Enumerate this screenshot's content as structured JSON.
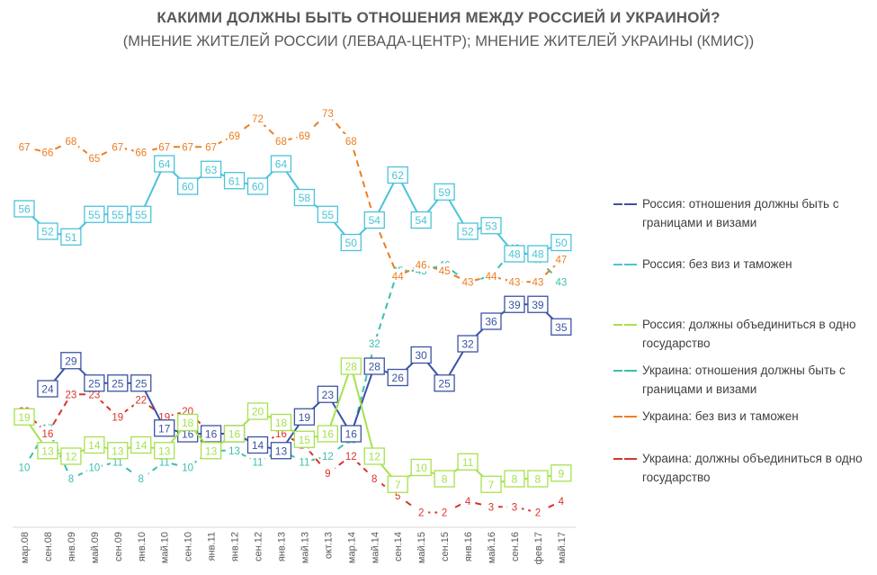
{
  "title": "КАКИМИ ДОЛЖНЫ БЫТЬ ОТНОШЕНИЯ МЕЖДУ РОССИЕЙ И УКРАИНОЙ?",
  "subtitle": "(МНЕНИЕ ЖИТЕЛЕЙ РОССИИ (ЛЕВАДА-ЦЕНТР); МНЕНИЕ ЖИТЕЛЕЙ УКРАИНЫ (КМИС))",
  "chart_data": {
    "type": "line",
    "title": "КАКИМИ ДОЛЖНЫ БЫТЬ ОТНОШЕНИЯ МЕЖДУ РОССИЕЙ И УКРАИНОЙ?",
    "subtitle": "(МНЕНИЕ ЖИТЕЛЕЙ РОССИИ (ЛЕВАДА-ЦЕНТР); МНЕНИЕ ЖИТЕЛЕЙ УКРАИНЫ (КМИС))",
    "categories": [
      "мар.08",
      "сен.08",
      "янв.09",
      "май.09",
      "сен.09",
      "янв.10",
      "май.10",
      "сен.10",
      "янв.11",
      "янв.12",
      "сен.12",
      "янв.13",
      "май.13",
      "окт.13",
      "мар.14",
      "май.14",
      "сен.14",
      "май.15",
      "сен.15",
      "янв.16",
      "май.16",
      "сен.16",
      "фев.17",
      "май.17"
    ],
    "legend_position": "right",
    "grid": false,
    "series": [
      {
        "name": "Россия: отношения должны быть с границами и визами",
        "color": "#3b53a4",
        "points": [
          [
            1,
            24
          ],
          [
            2,
            29
          ],
          [
            3,
            25
          ],
          [
            4,
            25
          ],
          [
            5,
            25
          ],
          [
            6,
            17
          ],
          [
            7,
            16
          ],
          [
            8,
            16
          ],
          [
            9,
            16
          ],
          [
            10,
            14
          ],
          [
            11,
            13
          ],
          [
            12,
            19
          ],
          [
            13,
            23
          ],
          [
            14,
            16
          ],
          [
            15,
            28
          ],
          [
            16,
            26
          ],
          [
            17,
            30
          ],
          [
            18,
            25
          ],
          [
            19,
            32
          ],
          [
            20,
            36
          ],
          [
            21,
            39
          ],
          [
            22,
            39
          ],
          [
            23,
            35
          ]
        ]
      },
      {
        "name": "Россия: без виз и таможен",
        "color": "#4bc3da",
        "points": [
          [
            0,
            56
          ],
          [
            1,
            52
          ],
          [
            2,
            51
          ],
          [
            3,
            55
          ],
          [
            4,
            55
          ],
          [
            5,
            55
          ],
          [
            6,
            64
          ],
          [
            7,
            60
          ],
          [
            8,
            63
          ],
          [
            9,
            61
          ],
          [
            10,
            60
          ],
          [
            11,
            64
          ],
          [
            12,
            58
          ],
          [
            13,
            55
          ],
          [
            14,
            50
          ],
          [
            15,
            54
          ],
          [
            16,
            62
          ],
          [
            17,
            54
          ],
          [
            18,
            59
          ],
          [
            19,
            52
          ],
          [
            20,
            53
          ],
          [
            21,
            48
          ],
          [
            22,
            48
          ],
          [
            23,
            50
          ]
        ]
      },
      {
        "name": "Россия: должны объединиться в одно государство",
        "color": "#a6e24f",
        "points": [
          [
            0,
            19
          ],
          [
            1,
            13
          ],
          [
            2,
            12
          ],
          [
            3,
            14
          ],
          [
            4,
            13
          ],
          [
            5,
            14
          ],
          [
            6,
            13
          ],
          [
            7,
            18
          ],
          [
            8,
            13
          ],
          [
            9,
            16
          ],
          [
            10,
            20
          ],
          [
            11,
            18
          ],
          [
            12,
            15
          ],
          [
            13,
            16
          ],
          [
            14,
            28
          ],
          [
            15,
            12
          ],
          [
            16,
            7
          ],
          [
            17,
            10
          ],
          [
            18,
            8
          ],
          [
            19,
            11
          ],
          [
            20,
            7
          ],
          [
            21,
            8
          ],
          [
            22,
            8
          ],
          [
            23,
            9
          ]
        ]
      },
      {
        "name": "Украина: отношения должны быть с границами и визами",
        "color": "#3bbfb0",
        "points": [
          [
            0,
            10
          ],
          [
            1,
            17
          ],
          [
            2,
            8
          ],
          [
            3,
            10
          ],
          [
            4,
            11
          ],
          [
            5,
            8
          ],
          [
            6,
            11
          ],
          [
            7,
            10
          ],
          [
            8,
            13
          ],
          [
            9,
            13
          ],
          [
            10,
            11
          ],
          [
            11,
            13
          ],
          [
            12,
            11
          ],
          [
            13,
            12
          ],
          [
            14,
            15
          ],
          [
            15,
            32
          ],
          [
            16,
            45
          ],
          [
            17,
            45
          ],
          [
            18,
            46
          ],
          [
            19,
            43
          ],
          [
            20,
            44
          ],
          [
            21,
            49
          ],
          [
            22,
            47
          ],
          [
            23,
            43
          ]
        ]
      },
      {
        "name": "Украина: без виз и таможен",
        "color": "#ed7d21",
        "points": [
          [
            0,
            67
          ],
          [
            1,
            66
          ],
          [
            2,
            68
          ],
          [
            3,
            65
          ],
          [
            4,
            67
          ],
          [
            5,
            66
          ],
          [
            6,
            67
          ],
          [
            7,
            67
          ],
          [
            8,
            67
          ],
          [
            9,
            69
          ],
          [
            10,
            72
          ],
          [
            11,
            68
          ],
          [
            12,
            69
          ],
          [
            13,
            73
          ],
          [
            14,
            68
          ],
          [
            15,
            54
          ],
          [
            16,
            44
          ],
          [
            17,
            46
          ],
          [
            18,
            45
          ],
          [
            19,
            43
          ],
          [
            20,
            44
          ],
          [
            21,
            43
          ],
          [
            22,
            43
          ],
          [
            23,
            47
          ]
        ]
      },
      {
        "name": "Украина: должны объединиться в одно государство",
        "color": "#d9342b",
        "points": [
          [
            0,
            20
          ],
          [
            1,
            16
          ],
          [
            2,
            23
          ],
          [
            3,
            23
          ],
          [
            4,
            19
          ],
          [
            5,
            22
          ],
          [
            6,
            19
          ],
          [
            7,
            20
          ],
          [
            8,
            16
          ],
          [
            9,
            16
          ],
          [
            10,
            14
          ],
          [
            11,
            16
          ],
          [
            12,
            14
          ],
          [
            13,
            9
          ],
          [
            14,
            12
          ],
          [
            15,
            8
          ],
          [
            16,
            5
          ],
          [
            17,
            2
          ],
          [
            18,
            2
          ],
          [
            19,
            4
          ],
          [
            20,
            3
          ],
          [
            21,
            3
          ],
          [
            22,
            2
          ],
          [
            23,
            4
          ]
        ]
      }
    ]
  }
}
